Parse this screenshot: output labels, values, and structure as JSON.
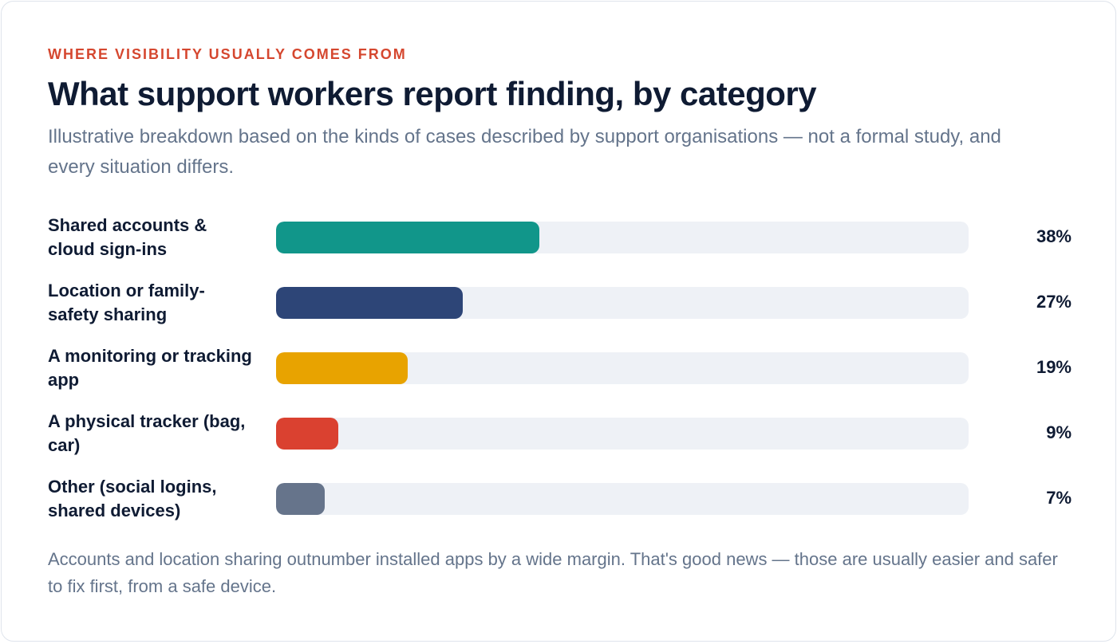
{
  "header": {
    "eyebrow": "WHERE VISIBILITY USUALLY COMES FROM",
    "title": "What support workers report finding, by category",
    "subtitle": "Illustrative breakdown based on the kinds of cases described by support organisations — not a formal study, and every situation differs."
  },
  "chart_data": {
    "type": "bar",
    "orientation": "horizontal",
    "title": "What support workers report finding, by category",
    "unit": "%",
    "xlim": [
      0,
      100
    ],
    "grid": false,
    "categories": [
      "Shared accounts & cloud sign-ins",
      "Location or family-safety sharing",
      "A monitoring or tracking app",
      "A physical tracker (bag, car)",
      "Other (social logins, shared devices)"
    ],
    "values": [
      38,
      27,
      19,
      9,
      7
    ],
    "value_labels": [
      "38%",
      "27%",
      "19%",
      "9%",
      "7%"
    ],
    "colors": [
      "#11968a",
      "#2d4577",
      "#e8a300",
      "#da4130",
      "#66748b"
    ],
    "track_color": "#eef1f6"
  },
  "footnote": "Accounts and location sharing outnumber installed apps by a wide margin. That's good news — those are usually easier and safer to fix first, from a safe device."
}
